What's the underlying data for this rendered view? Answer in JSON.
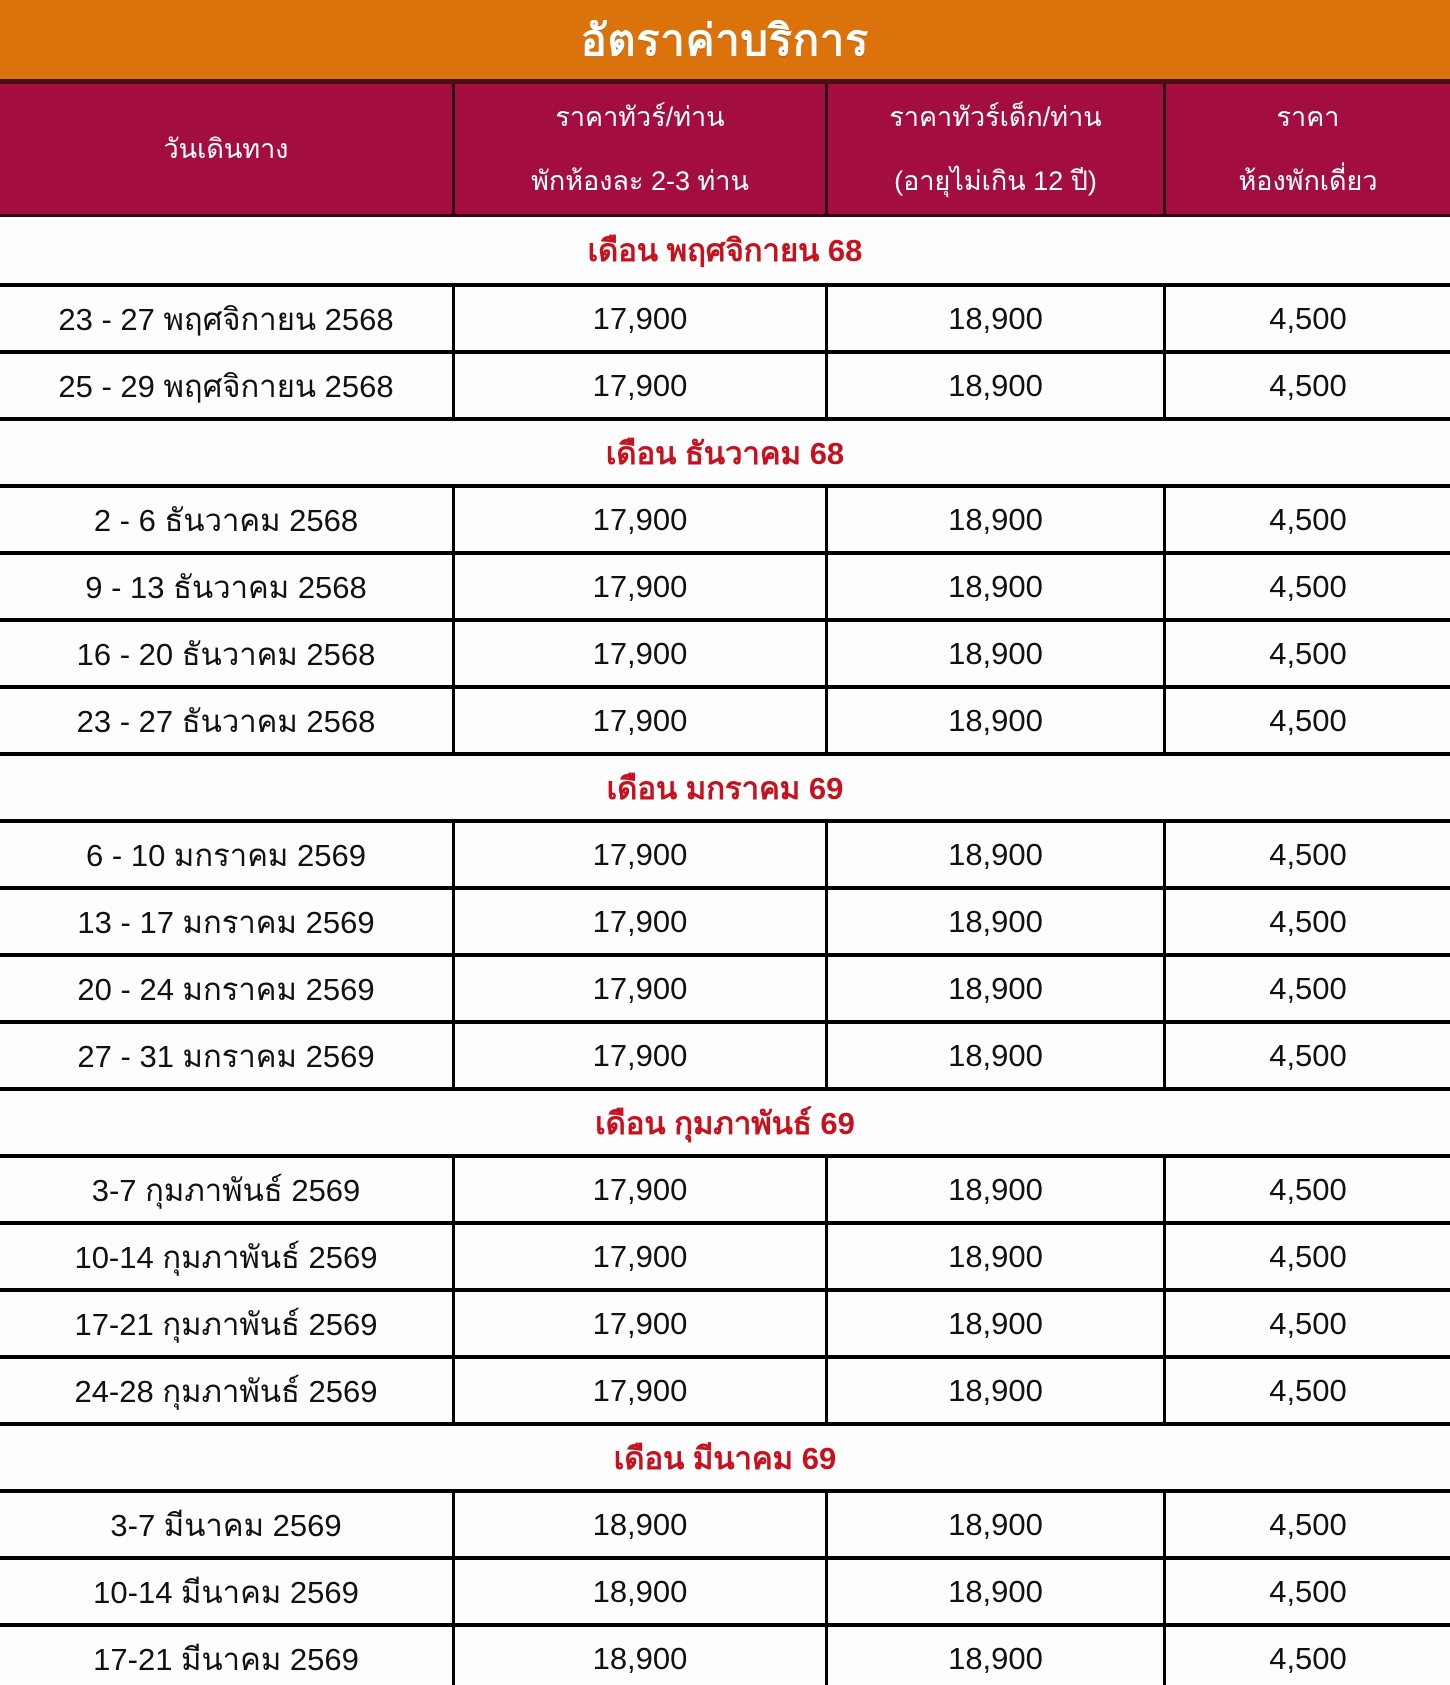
{
  "title": "อัตราค่าบริการ",
  "colors": {
    "banner_orange": "#DC720C",
    "header_maroon": "#A30D40",
    "header_divider_dark": "#2B0512",
    "month_label_red": "#C8111E",
    "grid_border_black": "#000000",
    "header_text_white": "#FFFFFF",
    "body_text_black": "#111111"
  },
  "table": {
    "columns": [
      {
        "lines": [
          "วันเดินทาง",
          ""
        ]
      },
      {
        "lines": [
          "ราคาทัวร์/ท่าน",
          "พักห้องละ 2-3 ท่าน"
        ]
      },
      {
        "lines": [
          "ราคาทัวร์เด็ก/ท่าน",
          "(อายุไม่เกิน 12 ปี)"
        ]
      },
      {
        "lines": [
          "ราคา",
          "ห้องพักเดี่ยว"
        ]
      }
    ],
    "sections": [
      {
        "month_label": "เดือน พฤศจิกายน 68",
        "rows": [
          {
            "date": "23 - 27 พฤศจิกายน 2568",
            "adult_price": "17,900",
            "child_price": "18,900",
            "single_room_price": "4,500"
          },
          {
            "date": "25 - 29 พฤศจิกายน 2568",
            "adult_price": "17,900",
            "child_price": "18,900",
            "single_room_price": "4,500"
          }
        ]
      },
      {
        "month_label": "เดือน ธันวาคม 68",
        "rows": [
          {
            "date": "2 - 6 ธันวาคม 2568",
            "adult_price": "17,900",
            "child_price": "18,900",
            "single_room_price": "4,500"
          },
          {
            "date": "9 - 13 ธันวาคม 2568",
            "adult_price": "17,900",
            "child_price": "18,900",
            "single_room_price": "4,500"
          },
          {
            "date": "16 - 20 ธันวาคม 2568",
            "adult_price": "17,900",
            "child_price": "18,900",
            "single_room_price": "4,500"
          },
          {
            "date": "23 - 27 ธันวาคม 2568",
            "adult_price": "17,900",
            "child_price": "18,900",
            "single_room_price": "4,500"
          }
        ]
      },
      {
        "month_label": "เดือน มกราคม 69",
        "rows": [
          {
            "date": "6 - 10 มกราคม 2569",
            "adult_price": "17,900",
            "child_price": "18,900",
            "single_room_price": "4,500"
          },
          {
            "date": "13 - 17 มกราคม 2569",
            "adult_price": "17,900",
            "child_price": "18,900",
            "single_room_price": "4,500"
          },
          {
            "date": "20 - 24 มกราคม 2569",
            "adult_price": "17,900",
            "child_price": "18,900",
            "single_room_price": "4,500"
          },
          {
            "date": "27 - 31 มกราคม 2569",
            "adult_price": "17,900",
            "child_price": "18,900",
            "single_room_price": "4,500"
          }
        ]
      },
      {
        "month_label": "เดือน กุมภาพันธ์ 69",
        "rows": [
          {
            "date": "3-7 กุมภาพันธ์ 2569",
            "adult_price": "17,900",
            "child_price": "18,900",
            "single_room_price": "4,500"
          },
          {
            "date": "10-14 กุมภาพันธ์ 2569",
            "adult_price": "17,900",
            "child_price": "18,900",
            "single_room_price": "4,500"
          },
          {
            "date": "17-21 กุมภาพันธ์ 2569",
            "adult_price": "17,900",
            "child_price": "18,900",
            "single_room_price": "4,500"
          },
          {
            "date": "24-28 กุมภาพันธ์ 2569",
            "adult_price": "17,900",
            "child_price": "18,900",
            "single_room_price": "4,500"
          }
        ]
      },
      {
        "month_label": "เดือน มีนาคม 69",
        "rows": [
          {
            "date": "3-7 มีนาคม 2569",
            "adult_price": "18,900",
            "child_price": "18,900",
            "single_room_price": "4,500"
          },
          {
            "date": "10-14 มีนาคม 2569",
            "adult_price": "18,900",
            "child_price": "18,900",
            "single_room_price": "4,500"
          },
          {
            "date": "17-21 มีนาคม 2569",
            "adult_price": "18,900",
            "child_price": "18,900",
            "single_room_price": "4,500"
          }
        ]
      }
    ]
  }
}
